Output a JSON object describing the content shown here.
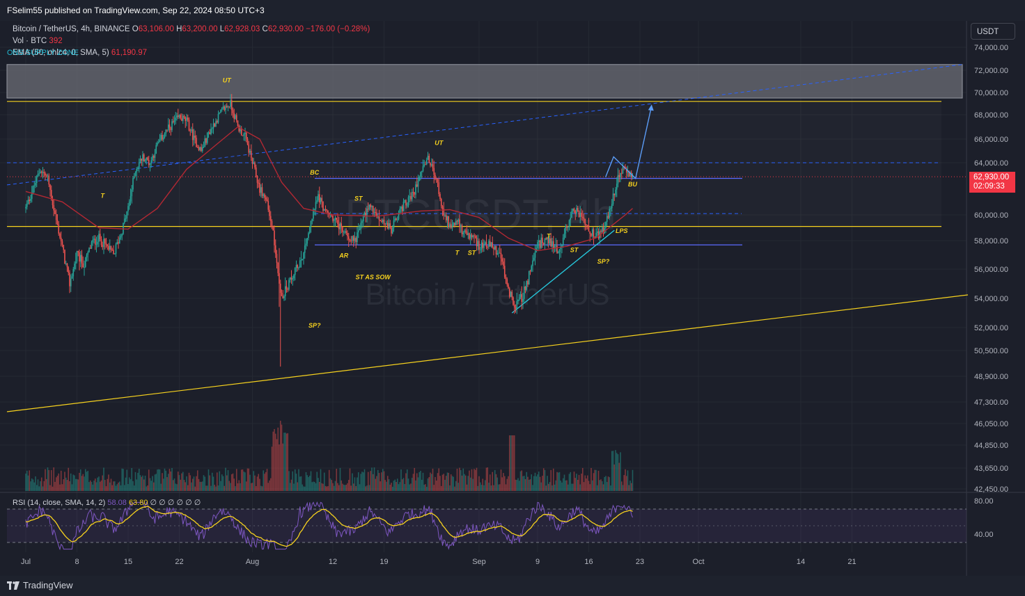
{
  "header": {
    "publisher_line": "FSelim55 published on TradingView.com, Sep 22, 2024 08:50 UTC+3"
  },
  "legend": {
    "symbol": "Bitcoin / TetherUS, 4h, BINANCE",
    "open_label": "O",
    "open": "63,106.00",
    "high_label": "H",
    "high": "63,200.00",
    "low_label": "L",
    "low": "62,928.03",
    "close_label": "C",
    "close": "62,930.00",
    "change": "−176.00 (−0.28%)",
    "volume_label": "Vol · BTC",
    "volume": "392",
    "ema_label": "EMA (50, ohlc4, 0, SMA, 5)",
    "ema_value": "61,190.97",
    "zone_label": "ONS SUPPLY ZONE"
  },
  "rsi_legend": {
    "label": "RSI (14, close, SMA, 14, 2)",
    "value1": "58.08",
    "value2": "63.80",
    "placeholders": "∅ ∅ ∅ ∅ ∅ ∅"
  },
  "price_scale": {
    "currency": "USDT",
    "current_price": "62,930.00",
    "countdown": "02:09:33"
  },
  "watermark": {
    "ticker": "BTCUSDT, 4h",
    "name": "Bitcoin / TetherUS"
  },
  "footer": {
    "brand": "TradingView"
  },
  "colors": {
    "background": "#1c1f2a",
    "up": "#26a69a",
    "down": "#ef5350",
    "yellow": "#f7d21e",
    "blue": "#2962ff",
    "ema": "#b22833",
    "rsi": "#7e57c2"
  },
  "chart_data": {
    "type": "candlestick",
    "title": "Bitcoin / TetherUS, 4h, BINANCE",
    "y_axis_ticks": [
      "74,000.00",
      "72,000.00",
      "70,000.00",
      "68,000.00",
      "66,000.00",
      "64,000.00",
      "60,000.00",
      "58,000.00",
      "56,000.00",
      "54,000.00",
      "52,000.00",
      "50,500.00",
      "48,900.00",
      "47,300.00",
      "46,050.00",
      "44,850.00",
      "43,650.00",
      "42,450.00"
    ],
    "y_axis_values": [
      74000,
      72000,
      70000,
      68000,
      66000,
      64000,
      60000,
      58000,
      56000,
      54000,
      52000,
      50500,
      48900,
      47300,
      46050,
      44850,
      43650,
      42450
    ],
    "x_axis_ticks": [
      "Jul",
      "8",
      "15",
      "22",
      "Aug",
      "12",
      "19",
      "Sep",
      "9",
      "16",
      "23",
      "Oct",
      "14",
      "21"
    ],
    "x_axis_days": [
      0,
      7,
      14,
      21,
      31,
      42,
      49,
      62,
      70,
      77,
      84,
      92,
      106,
      113
    ],
    "price_path": [
      [
        0,
        60500
      ],
      [
        1,
        62000
      ],
      [
        2,
        63500
      ],
      [
        3,
        62800
      ],
      [
        4,
        60000
      ],
      [
        5,
        57500
      ],
      [
        6,
        55000
      ],
      [
        7,
        57000
      ],
      [
        8,
        56300
      ],
      [
        9,
        57800
      ],
      [
        10,
        58200
      ],
      [
        11,
        57600
      ],
      [
        12,
        57000
      ],
      [
        13,
        58500
      ],
      [
        14,
        60500
      ],
      [
        15,
        63500
      ],
      [
        16,
        64500
      ],
      [
        17,
        64000
      ],
      [
        18,
        65500
      ],
      [
        19,
        66500
      ],
      [
        20,
        67200
      ],
      [
        21,
        67800
      ],
      [
        22,
        67500
      ],
      [
        23,
        66000
      ],
      [
        24,
        65000
      ],
      [
        25,
        66500
      ],
      [
        26,
        67500
      ],
      [
        27,
        68500
      ],
      [
        28,
        69000
      ],
      [
        29,
        67000
      ],
      [
        30,
        66200
      ],
      [
        31,
        64000
      ],
      [
        32,
        62000
      ],
      [
        33,
        61000
      ],
      [
        34,
        58000
      ],
      [
        35,
        54000
      ],
      [
        36,
        55000
      ],
      [
        37,
        56000
      ],
      [
        38,
        57200
      ],
      [
        39,
        59500
      ],
      [
        40,
        61500
      ],
      [
        41,
        60200
      ],
      [
        42,
        59800
      ],
      [
        43,
        59000
      ],
      [
        44,
        58400
      ],
      [
        45,
        58000
      ],
      [
        46,
        59500
      ],
      [
        47,
        60800
      ],
      [
        48,
        59800
      ],
      [
        49,
        59500
      ],
      [
        50,
        58800
      ],
      [
        51,
        60200
      ],
      [
        52,
        61000
      ],
      [
        53,
        61500
      ],
      [
        54,
        63500
      ],
      [
        55,
        64300
      ],
      [
        56,
        63000
      ],
      [
        57,
        60500
      ],
      [
        58,
        59200
      ],
      [
        59,
        59500
      ],
      [
        60,
        58500
      ],
      [
        61,
        58300
      ],
      [
        62,
        57700
      ],
      [
        63,
        57800
      ],
      [
        64,
        57500
      ],
      [
        65,
        56800
      ],
      [
        66,
        54500
      ],
      [
        67,
        53500
      ],
      [
        68,
        54200
      ],
      [
        69,
        55800
      ],
      [
        70,
        57600
      ],
      [
        71,
        58200
      ],
      [
        72,
        57800
      ],
      [
        73,
        57200
      ],
      [
        74,
        59200
      ],
      [
        75,
        60500
      ],
      [
        76,
        59900
      ],
      [
        77,
        58800
      ],
      [
        78,
        58300
      ],
      [
        79,
        58800
      ],
      [
        80,
        60500
      ],
      [
        81,
        62900
      ],
      [
        82,
        63600
      ],
      [
        83,
        62930
      ]
    ],
    "ema_path": [
      [
        0,
        61800
      ],
      [
        5,
        61000
      ],
      [
        10,
        59000
      ],
      [
        14,
        58900
      ],
      [
        18,
        60500
      ],
      [
        22,
        63500
      ],
      [
        26,
        65500
      ],
      [
        29,
        67000
      ],
      [
        32,
        66000
      ],
      [
        35,
        62500
      ],
      [
        38,
        60500
      ],
      [
        42,
        60000
      ],
      [
        48,
        59900
      ],
      [
        54,
        60300
      ],
      [
        58,
        60400
      ],
      [
        62,
        59800
      ],
      [
        66,
        58200
      ],
      [
        70,
        57300
      ],
      [
        74,
        57600
      ],
      [
        78,
        58200
      ],
      [
        82,
        60000
      ],
      [
        83,
        60500
      ]
    ],
    "horizontal_levels": [
      {
        "price": 69200,
        "style": "yellow-solid"
      },
      {
        "price": 59100,
        "style": "yellow-solid"
      },
      {
        "price": 64000,
        "style": "blue-dashed"
      },
      {
        "price": 62800,
        "style": "blue-solid"
      },
      {
        "price": 60100,
        "style": "blue-dashed"
      },
      {
        "price": 57700,
        "style": "blue-solid"
      }
    ],
    "supply_zone": {
      "price_low": 69500,
      "price_high": 72500,
      "label": "ONS SUPPLY ZONE"
    },
    "annotations": [
      {
        "text": "UT",
        "day": 27.5,
        "price": 70900
      },
      {
        "text": "T",
        "day": 10.5,
        "price": 61300
      },
      {
        "text": "BC",
        "day": 39.5,
        "price": 63100
      },
      {
        "text": "ST",
        "day": 45.5,
        "price": 61100
      },
      {
        "text": "AR",
        "day": 43.5,
        "price": 56800
      },
      {
        "text": "ST AS SOW",
        "day": 47.5,
        "price": 55300
      },
      {
        "text": "SP?",
        "day": 39.5,
        "price": 52000
      },
      {
        "text": "UT",
        "day": 56.5,
        "price": 65500
      },
      {
        "text": "T",
        "day": 59,
        "price": 57000
      },
      {
        "text": "ST",
        "day": 61,
        "price": 57000
      },
      {
        "text": "T",
        "day": 71.5,
        "price": 58200
      },
      {
        "text": "ST",
        "day": 75,
        "price": 57200
      },
      {
        "text": "LPS",
        "day": 81.5,
        "price": 58600
      },
      {
        "text": "SP?",
        "day": 79,
        "price": 56400
      },
      {
        "text": "BU",
        "day": 83,
        "price": 62200
      }
    ],
    "rsi": {
      "label": "RSI (14, close, SMA, 14, 2)",
      "y_ticks": [
        "80.00",
        "40.00"
      ],
      "y_values": [
        80,
        40
      ],
      "upper_band": 70,
      "lower_band": 30,
      "last_rsi": 58.08,
      "last_sma": 63.8
    }
  }
}
